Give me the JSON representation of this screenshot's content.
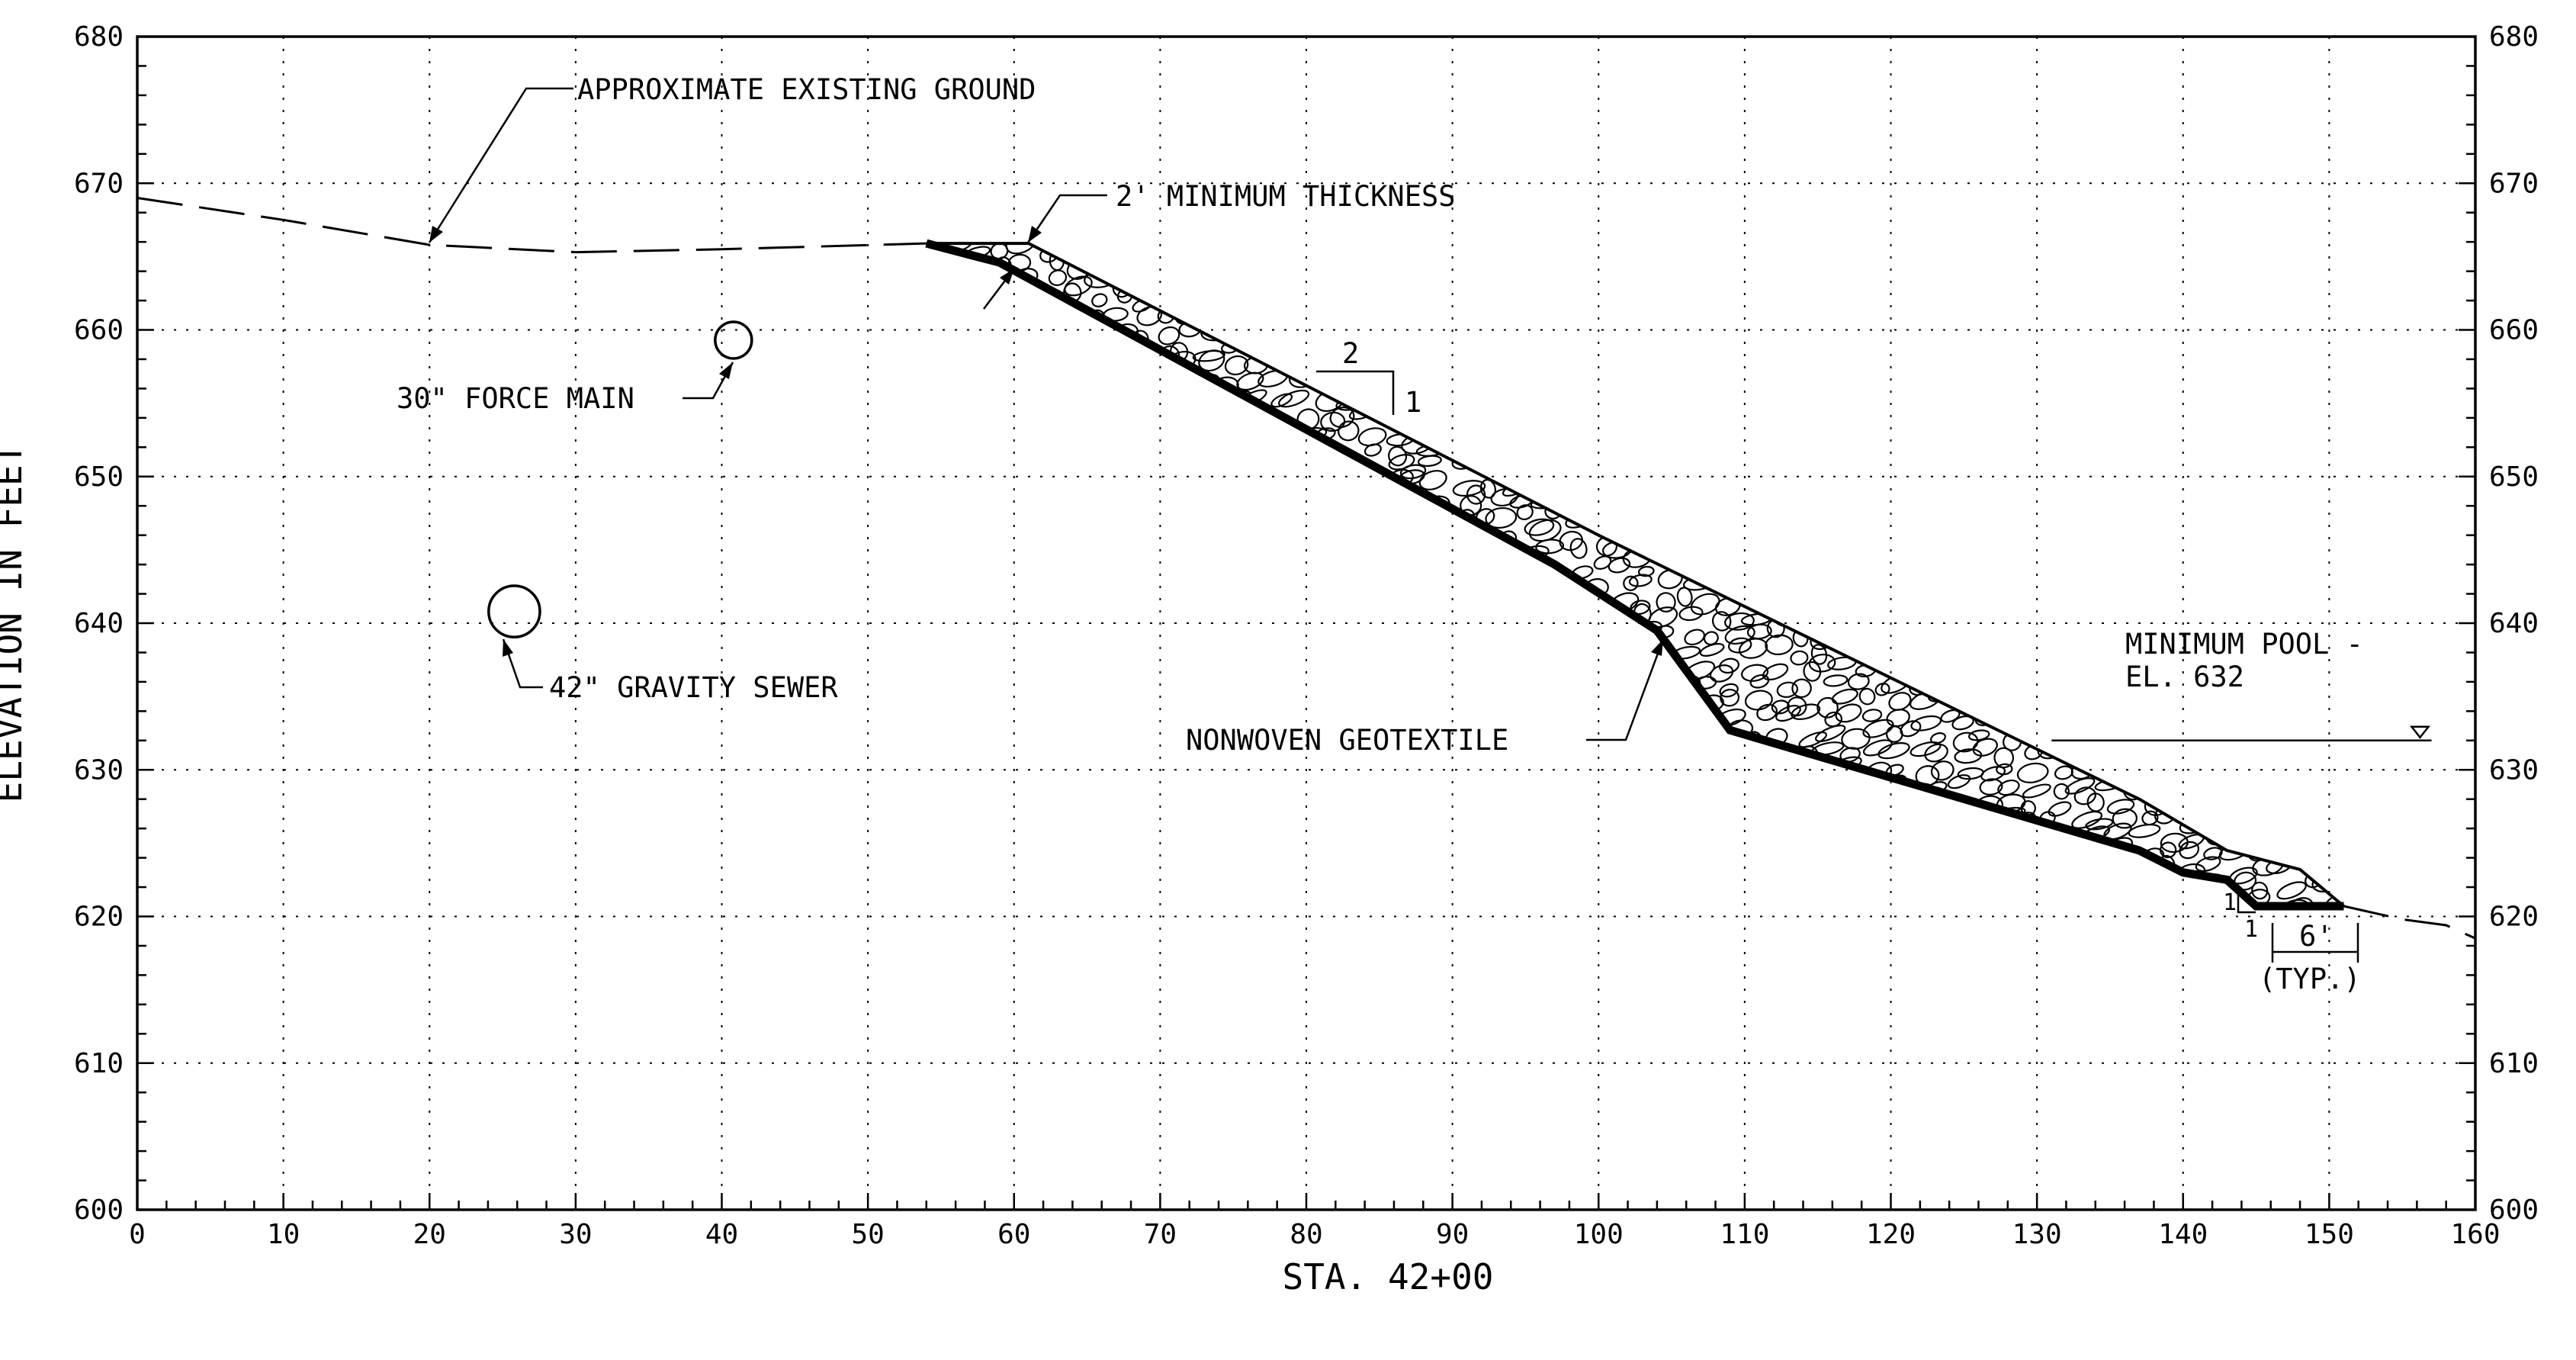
{
  "chart_data": {
    "type": "cross-section",
    "xlabel": "STA. 42+00",
    "ylabel": "ELEVATION IN FEET",
    "xlim": [
      0,
      160
    ],
    "ylim": [
      600,
      680
    ],
    "x_ticks": [
      "0",
      "10",
      "20",
      "30",
      "40",
      "50",
      "60",
      "70",
      "80",
      "90",
      "100",
      "110",
      "120",
      "130",
      "140",
      "150",
      "160"
    ],
    "y_ticks": [
      "600",
      "610",
      "620",
      "630",
      "640",
      "650",
      "660",
      "670",
      "680"
    ],
    "grid": true,
    "existing_ground": [
      [
        0,
        669
      ],
      [
        10,
        667.5
      ],
      [
        20,
        665.8
      ],
      [
        30,
        665.3
      ],
      [
        40,
        665.5
      ],
      [
        54,
        665.9
      ]
    ],
    "existing_ground_right": [
      [
        151,
        620.7
      ],
      [
        155,
        619.8
      ],
      [
        158,
        619.4
      ],
      [
        160,
        618.5
      ]
    ],
    "riprap_top": [
      [
        54,
        665.9
      ],
      [
        61,
        665.9
      ],
      [
        100,
        646
      ],
      [
        137,
        628
      ],
      [
        143,
        624.5
      ],
      [
        148,
        623.2
      ],
      [
        151,
        620.7
      ]
    ],
    "riprap_bottom": [
      [
        54,
        665.9
      ],
      [
        59,
        664.6
      ],
      [
        97,
        644
      ],
      [
        104,
        639.5
      ],
      [
        109,
        632.7
      ],
      [
        137,
        624.5
      ],
      [
        140,
        623
      ],
      [
        143,
        622.5
      ],
      [
        145,
        620.7
      ],
      [
        151,
        620.7
      ]
    ],
    "force_main": {
      "x": 40.8,
      "y": 659.3,
      "diameter_in": 30
    },
    "gravity_sewer": {
      "x": 25.8,
      "y": 640.8,
      "diameter_in": 42
    },
    "water_level": {
      "x_start": 131,
      "x_end": 157,
      "y": 632
    },
    "annotations": {
      "existing_ground": "APPROXIMATE EXISTING GROUND",
      "thickness": "2' MINIMUM THICKNESS",
      "force_main": "30\" FORCE MAIN",
      "gravity_sewer": "42\" GRAVITY SEWER",
      "geotextile": "NONWOVEN GEOTEXTILE",
      "pool_line1": "MINIMUM POOL -",
      "pool_line2": "EL. 632",
      "slope_run": "2",
      "slope_rise": "1",
      "toe_slope_run": "1",
      "toe_slope_rise": "1",
      "toe_width": "6'",
      "toe_typ": "(TYP.)"
    }
  }
}
